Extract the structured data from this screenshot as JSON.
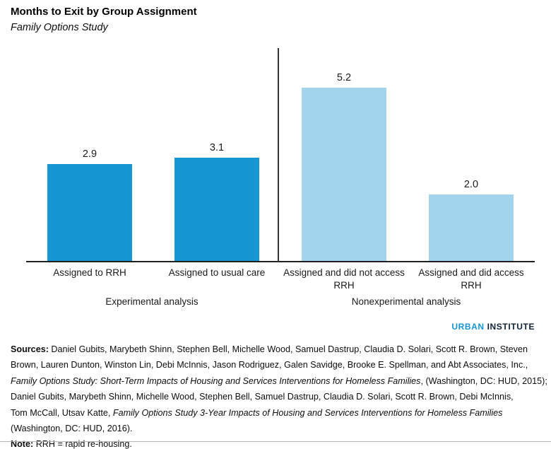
{
  "page": {
    "title": "Months to Exit by Group Assignment",
    "subtitle": "Family Options Study"
  },
  "logo": {
    "first": "URBAN",
    "second": "INSTITUTE"
  },
  "colors": {
    "primary_blue": "#1696D2",
    "light_blue": "#A2D4EC",
    "axis": "#1F1F1F",
    "divider": "#333333",
    "logo_blue": "#1696D2",
    "logo_navy": "#0E2235",
    "bottom_rule": "#B5B5B5"
  },
  "chart_data": {
    "type": "bar",
    "title": "Months to Exit by Group Assignment",
    "subtitle": "Family Options Study",
    "unit": "months",
    "categories": [
      "Assigned to RRH",
      "Assigned to usual care",
      "Assigned and did not access RRH",
      "Assigned and did access RRH"
    ],
    "values": [
      2.9,
      3.1,
      5.2,
      2.0
    ],
    "value_labels": [
      "2.9",
      "3.1",
      "5.2",
      "2.0"
    ],
    "bar_colors": [
      "#1696D2",
      "#1696D2",
      "#A2D4EC",
      "#A2D4EC"
    ],
    "groups": [
      {
        "label": "Experimental analysis",
        "category_indexes": [
          0,
          1
        ]
      },
      {
        "label": "Nonexperimental analysis",
        "category_indexes": [
          2,
          3
        ]
      }
    ],
    "ylim": [
      0,
      6.43
    ],
    "grid": false,
    "data_labels": true,
    "legend": null
  },
  "footer": {
    "lines": [
      {
        "segments": [
          {
            "style": "bold",
            "text": "Sources: "
          },
          {
            "style": "regular",
            "text": "Daniel Gubits, Marybeth Shinn, Stephen Bell, Michelle Wood, Samuel Dastrup, Claudia D. Solari, Scott R. Brown, Steven"
          }
        ]
      },
      {
        "segments": [
          {
            "style": "regular",
            "text": "Brown, Lauren Dunton, Winston Lin, Debi McInnis, Jason Rodriguez, Galen Savidge, Brooke E. Spellman, and Abt Associates, Inc.,"
          }
        ]
      },
      {
        "segments": [
          {
            "style": "italic",
            "text": "Family Options Study: Short-Term Impacts of Housing and Services Interventions for Homeless Families"
          },
          {
            "style": "regular",
            "text": ", (Washington, DC: HUD, 2015);"
          }
        ]
      },
      {
        "segments": [
          {
            "style": "regular",
            "text": "Daniel Gubits, Marybeth Shinn, Michelle Wood, Stephen Bell, Samuel Dastrup, Claudia D. Solari, Scott R. Brown, Debi McInnis,"
          }
        ]
      },
      {
        "segments": [
          {
            "style": "regular",
            "text": "Tom McCall, Utsav Katte, "
          },
          {
            "style": "italic",
            "text": "Family Options Study 3-Year Impacts of Housing and Services Interventions for Homeless Families"
          }
        ]
      },
      {
        "segments": [
          {
            "style": "regular",
            "text": "(Washington, DC: HUD, 2016)."
          }
        ]
      },
      {
        "segments": [
          {
            "style": "bold",
            "text": "Note: "
          },
          {
            "style": "regular",
            "text": "RRH = rapid re-housing."
          }
        ]
      }
    ]
  }
}
